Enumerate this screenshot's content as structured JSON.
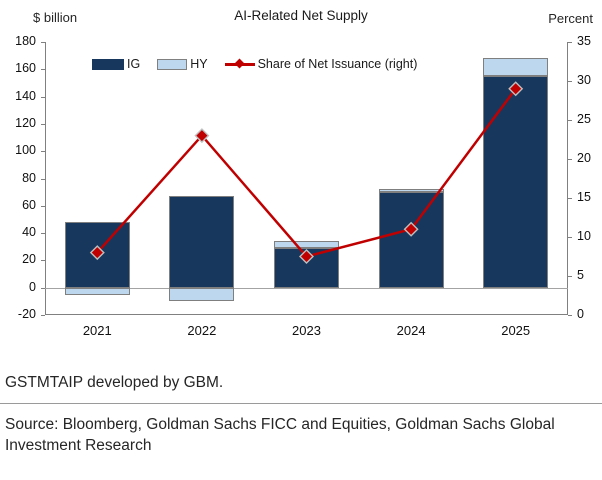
{
  "chart_data": {
    "type": "combo-stacked-bar-line",
    "title": "AI-Related Net Supply",
    "categories": [
      "2021",
      "2022",
      "2023",
      "2024",
      "2025"
    ],
    "series": [
      {
        "name": "IG",
        "type": "bar",
        "axis": "left",
        "color": "#17375D",
        "values": [
          48,
          67,
          29,
          70,
          155
        ]
      },
      {
        "name": "HY",
        "type": "bar",
        "axis": "left",
        "color": "#BDD7EE",
        "values": [
          -5,
          -10,
          5,
          2,
          13
        ]
      },
      {
        "name": "Share of Net Issuance (right)",
        "type": "line",
        "axis": "right",
        "color": "#C00000",
        "marker": "diamond",
        "values": [
          8,
          23,
          7.5,
          11,
          29
        ]
      }
    ],
    "left_axis": {
      "title": "$ billion",
      "min": -20,
      "max": 180,
      "tick_step": 20
    },
    "right_axis": {
      "title": "Percent",
      "min": 0,
      "max": 35,
      "tick_step": 5
    },
    "legend_position": "top",
    "grid": false,
    "zero_line": true,
    "axis_color": "#808080",
    "marker_outline": "#bfbfbf"
  },
  "footer": {
    "note": "GSTMTAIP developed by GBM.",
    "source": "Source: Bloomberg, Goldman Sachs FICC and Equities, Goldman Sachs Global Investment Research"
  }
}
